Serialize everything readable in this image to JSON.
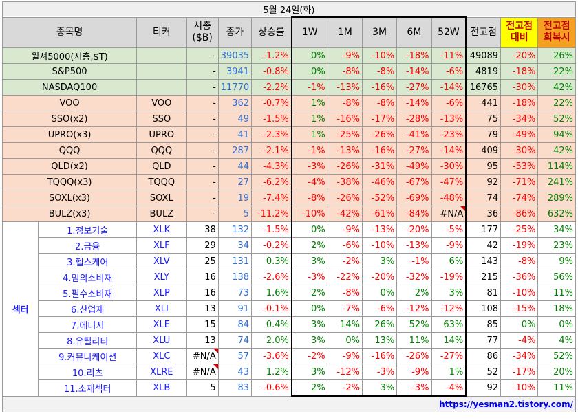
{
  "title": "5월 24일(화)",
  "headers": [
    "종목명",
    "티커",
    "시총\n($B)",
    "종가",
    "상승률",
    "1W",
    "1M",
    "3M",
    "6M",
    "52W",
    "전고점",
    "전고점\n대비",
    "전고점\n회복시"
  ],
  "index_rows": [
    {
      "name": "윌셔5000(시총,$T)",
      "ticker": "",
      "cap": "-",
      "close": "39035",
      "chg": "-1.2%",
      "w1": "0%",
      "m1": "-9%",
      "m3": "-10%",
      "m6": "-18%",
      "w52": "-11%",
      "peak": "49089",
      "vs_peak": "-20%",
      "recover": "26%"
    },
    {
      "name": "S&P500",
      "ticker": "",
      "cap": "-",
      "close": "3941",
      "chg": "-0.8%",
      "w1": "0%",
      "m1": "-8%",
      "m3": "-8%",
      "m6": "-14%",
      "w52": "-6%",
      "peak": "4819",
      "vs_peak": "-18%",
      "recover": "22%"
    },
    {
      "name": "NASDAQ100",
      "ticker": "",
      "cap": "-",
      "close": "11770",
      "chg": "-2.2%",
      "w1": "-1%",
      "m1": "-13%",
      "m3": "-16%",
      "m6": "-27%",
      "w52": "-14%",
      "peak": "16765",
      "vs_peak": "-30%",
      "recover": "42%"
    }
  ],
  "etf_rows": [
    {
      "name": "VOO",
      "ticker": "VOO",
      "cap": "-",
      "close": "362",
      "chg": "-0.7%",
      "w1": "1%",
      "m1": "-8%",
      "m3": "-8%",
      "m6": "-14%",
      "w52": "-6%",
      "peak": "441",
      "vs_peak": "-18%",
      "recover": "22%"
    },
    {
      "name": "SSO(x2)",
      "ticker": "SSO",
      "cap": "-",
      "close": "49",
      "chg": "-1.5%",
      "w1": "1%",
      "m1": "-16%",
      "m3": "-17%",
      "m6": "-28%",
      "w52": "-13%",
      "peak": "75",
      "vs_peak": "-34%",
      "recover": "52%"
    },
    {
      "name": "UPRO(x3)",
      "ticker": "UPRO",
      "cap": "-",
      "close": "41",
      "chg": "-2.3%",
      "w1": "1%",
      "m1": "-25%",
      "m3": "-26%",
      "m6": "-41%",
      "w52": "-23%",
      "peak": "79",
      "vs_peak": "-49%",
      "recover": "94%"
    },
    {
      "name": "QQQ",
      "ticker": "QQQ",
      "cap": "-",
      "close": "287",
      "chg": "-2.1%",
      "w1": "-1%",
      "m1": "-13%",
      "m3": "-16%",
      "m6": "-27%",
      "w52": "-14%",
      "peak": "409",
      "vs_peak": "-30%",
      "recover": "42%"
    },
    {
      "name": "QLD(x2)",
      "ticker": "QLD",
      "cap": "-",
      "close": "44",
      "chg": "-4.3%",
      "w1": "-3%",
      "m1": "-26%",
      "m3": "-31%",
      "m6": "-49%",
      "w52": "-30%",
      "peak": "95",
      "vs_peak": "-53%",
      "recover": "114%"
    },
    {
      "name": "TQQQ(x3)",
      "ticker": "TQQQ",
      "cap": "-",
      "close": "27",
      "chg": "-6.2%",
      "w1": "-4%",
      "m1": "-38%",
      "m3": "-46%",
      "m6": "-67%",
      "w52": "-47%",
      "peak": "92",
      "vs_peak": "-71%",
      "recover": "241%"
    },
    {
      "name": "SOXL(x3)",
      "ticker": "SOXL",
      "cap": "-",
      "close": "19",
      "chg": "-7.4%",
      "w1": "-8%",
      "m1": "-26%",
      "m3": "-52%",
      "m6": "-69%",
      "w52": "-48%",
      "peak": "74",
      "vs_peak": "-74%",
      "recover": "289%"
    },
    {
      "name": "BULZ(x3)",
      "ticker": "BULZ",
      "cap": "-",
      "close": "5",
      "chg": "-11.2%",
      "w1": "-10%",
      "m1": "-42%",
      "m3": "-61%",
      "m6": "-84%",
      "w52": "#N/A",
      "peak": "36",
      "vs_peak": "-86%",
      "recover": "632%"
    }
  ],
  "sector_label": "섹터",
  "sector_rows": [
    {
      "name": "1.정보기술",
      "ticker": "XLK",
      "cap": "38",
      "close": "132",
      "chg": "-1.5%",
      "w1": "0%",
      "m1": "-9%",
      "m3": "-13%",
      "m6": "-20%",
      "w52": "-5%",
      "peak": "177",
      "vs_peak": "-25%",
      "recover": "34%"
    },
    {
      "name": "2.금융",
      "ticker": "XLF",
      "cap": "29",
      "close": "34",
      "chg": "-0.2%",
      "w1": "2%",
      "m1": "-6%",
      "m3": "-10%",
      "m6": "-13%",
      "w52": "-9%",
      "peak": "42",
      "vs_peak": "-19%",
      "recover": "23%"
    },
    {
      "name": "3.헬스케어",
      "ticker": "XLV",
      "cap": "25",
      "close": "131",
      "chg": "0.3%",
      "w1": "3%",
      "m1": "-2%",
      "m3": "3%",
      "m6": "-1%",
      "w52": "6%",
      "peak": "143",
      "vs_peak": "-8%",
      "recover": "9%"
    },
    {
      "name": "4.임의소비재",
      "ticker": "XLY",
      "cap": "16",
      "close": "138",
      "chg": "-2.6%",
      "w1": "-3%",
      "m1": "-22%",
      "m3": "-20%",
      "m6": "-32%",
      "w52": "-19%",
      "peak": "215",
      "vs_peak": "-36%",
      "recover": "56%"
    },
    {
      "name": "5.필수소비재",
      "ticker": "XLP",
      "cap": "16",
      "close": "73",
      "chg": "1.6%",
      "w1": "2%",
      "m1": "-8%",
      "m3": "0%",
      "m6": "2%",
      "w52": "3%",
      "peak": "81",
      "vs_peak": "-10%",
      "recover": "11%"
    },
    {
      "name": "6.산업재",
      "ticker": "XLI",
      "cap": "13",
      "close": "91",
      "chg": "-0.1%",
      "w1": "0%",
      "m1": "-7%",
      "m3": "-6%",
      "m6": "-12%",
      "w52": "-12%",
      "peak": "108",
      "vs_peak": "-15%",
      "recover": "18%"
    },
    {
      "name": "7.에너지",
      "ticker": "XLE",
      "cap": "15",
      "close": "84",
      "chg": "0.4%",
      "w1": "3%",
      "m1": "14%",
      "m3": "26%",
      "m6": "52%",
      "w52": "63%",
      "peak": "85",
      "vs_peak": "0%",
      "recover": "0%"
    },
    {
      "name": "8.유틸리티",
      "ticker": "XLU",
      "cap": "13",
      "close": "74",
      "chg": "2.0%",
      "w1": "3%",
      "m1": "0%",
      "m3": "13%",
      "m6": "11%",
      "w52": "14%",
      "peak": "77",
      "vs_peak": "-4%",
      "recover": "4%"
    },
    {
      "name": "9.커뮤니케이션",
      "ticker": "XLC",
      "cap": "#N/A",
      "close": "57",
      "chg": "-3.6%",
      "w1": "-2%",
      "m1": "-9%",
      "m3": "-16%",
      "m6": "-26%",
      "w52": "-27%",
      "peak": "86",
      "vs_peak": "-34%",
      "recover": "52%"
    },
    {
      "name": "10.리츠",
      "ticker": "XLRE",
      "cap": "#N/A",
      "close": "43",
      "chg": "1.2%",
      "w1": "3%",
      "m1": "-12%",
      "m3": "-3%",
      "m6": "-9%",
      "w52": "1%",
      "peak": "52",
      "vs_peak": "-17%",
      "recover": "20%"
    },
    {
      "name": "11.소재섹터",
      "ticker": "XLB",
      "cap": "5",
      "close": "83",
      "chg": "-0.6%",
      "w1": "2%",
      "m1": "-2%",
      "m3": "3%",
      "m6": "-3%",
      "w52": "-4%",
      "peak": "92",
      "vs_peak": "-10%",
      "recover": "11%"
    }
  ],
  "footer_link": "https://yesman2.tistory.com/",
  "colors": {
    "negative": "#ff0000",
    "positive": "#008000",
    "close_blue": "#2f6fd4",
    "sector_blue": "#1a1aff",
    "index_bg": "#d8e9cf",
    "etf_bg": "#fbdccb",
    "yellow": "#ffff00",
    "orange": "#f4a020"
  }
}
